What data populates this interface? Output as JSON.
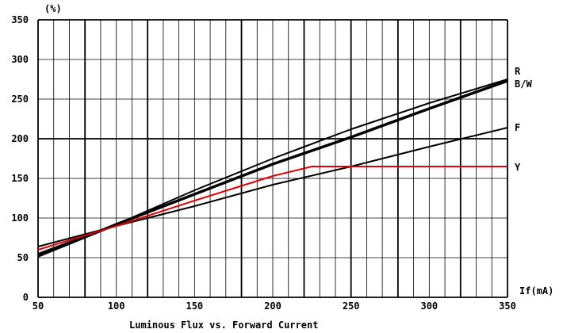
{
  "chart_data": {
    "type": "line",
    "title": "Luminous Flux vs. Forward Current",
    "xlabel": "If(mA)",
    "ylabel": "(%)",
    "xlim": [
      50,
      350
    ],
    "ylim": [
      0,
      350
    ],
    "x_ticks": [
      "50",
      "100",
      "150",
      "200",
      "250",
      "300",
      "350"
    ],
    "y_ticks": [
      "0",
      "50",
      "100",
      "150",
      "200",
      "250",
      "300",
      "350"
    ],
    "grid": true,
    "series": [
      {
        "name": "R",
        "color": "#000000",
        "x": [
          50,
          100,
          150,
          200,
          250,
          300,
          350
        ],
        "y": [
          55,
          92,
          135,
          175,
          212,
          245,
          275
        ]
      },
      {
        "name": "B/W",
        "color": "#000000",
        "x": [
          50,
          100,
          150,
          200,
          250,
          300,
          350
        ],
        "y": [
          52,
          92,
          130,
          168,
          202,
          238,
          273
        ]
      },
      {
        "name": "F",
        "color": "#000000",
        "x": [
          50,
          100,
          150,
          200,
          250,
          300,
          350
        ],
        "y": [
          64,
          90,
          115,
          142,
          165,
          190,
          214
        ]
      },
      {
        "name": "Y",
        "color": "#e00000",
        "x": [
          50,
          100,
          150,
          200,
          225,
          250,
          300,
          350
        ],
        "y": [
          60,
          90,
          122,
          153,
          165,
          165,
          165,
          165
        ]
      }
    ]
  }
}
